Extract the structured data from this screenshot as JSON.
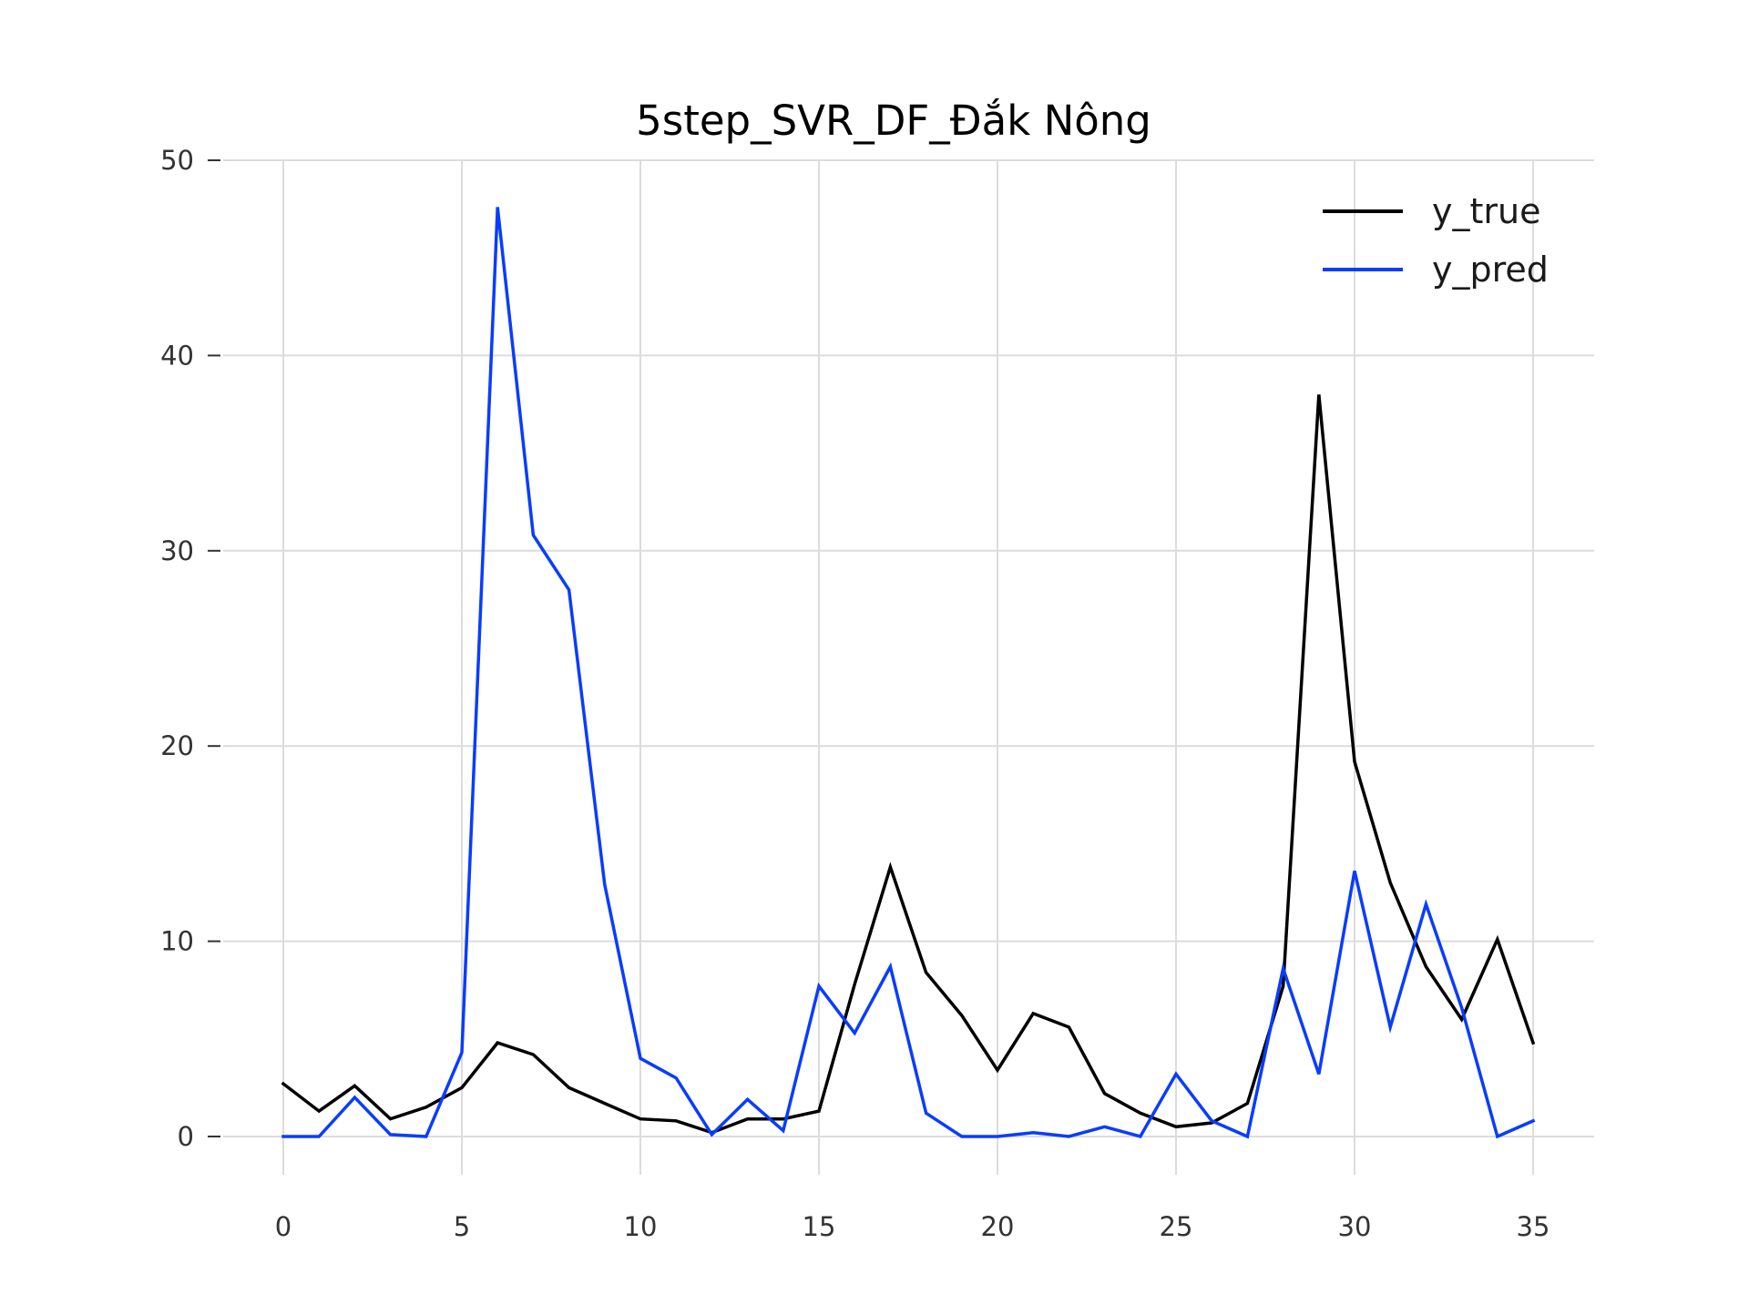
{
  "chart_data": {
    "type": "line",
    "title": "5step_SVR_DF_Đắk Nông",
    "xlabel": "",
    "ylabel": "",
    "x": [
      0,
      1,
      2,
      3,
      4,
      5,
      6,
      7,
      8,
      9,
      10,
      11,
      12,
      13,
      14,
      15,
      16,
      17,
      18,
      19,
      20,
      21,
      22,
      23,
      24,
      25,
      26,
      27,
      28,
      29,
      30,
      31,
      32,
      33,
      34,
      35
    ],
    "xlim": [
      -1.5,
      36.7
    ],
    "ylim": [
      -2.2,
      50
    ],
    "xticks": [
      0,
      5,
      10,
      15,
      20,
      25,
      30,
      35
    ],
    "yticks": [
      0,
      10,
      20,
      30,
      40,
      50
    ],
    "grid": true,
    "legend_position": "top-right",
    "series": [
      {
        "name": "y_true",
        "color": "#000000",
        "values": [
          2.7,
          1.3,
          2.6,
          0.9,
          1.5,
          2.5,
          4.8,
          4.2,
          2.5,
          1.7,
          0.9,
          0.8,
          0.2,
          0.9,
          0.9,
          1.3,
          7.8,
          13.8,
          8.4,
          6.2,
          3.4,
          6.3,
          5.6,
          2.2,
          1.2,
          0.5,
          0.7,
          1.7,
          7.7,
          38.0,
          19.2,
          13.0,
          8.7,
          6.0,
          10.1,
          4.8
        ]
      },
      {
        "name": "y_pred",
        "color": "#0a3cff",
        "values": [
          0.0,
          0.0,
          2.0,
          0.1,
          0.0,
          4.3,
          47.6,
          30.8,
          28.0,
          12.9,
          4.0,
          3.0,
          0.1,
          1.9,
          0.3,
          7.7,
          5.3,
          8.7,
          1.2,
          0.0,
          0.0,
          0.2,
          0.0,
          0.5,
          0.0,
          3.2,
          0.8,
          0.0,
          8.6,
          3.2,
          13.6,
          5.6,
          11.9,
          6.6,
          0.0,
          0.8
        ]
      }
    ]
  }
}
